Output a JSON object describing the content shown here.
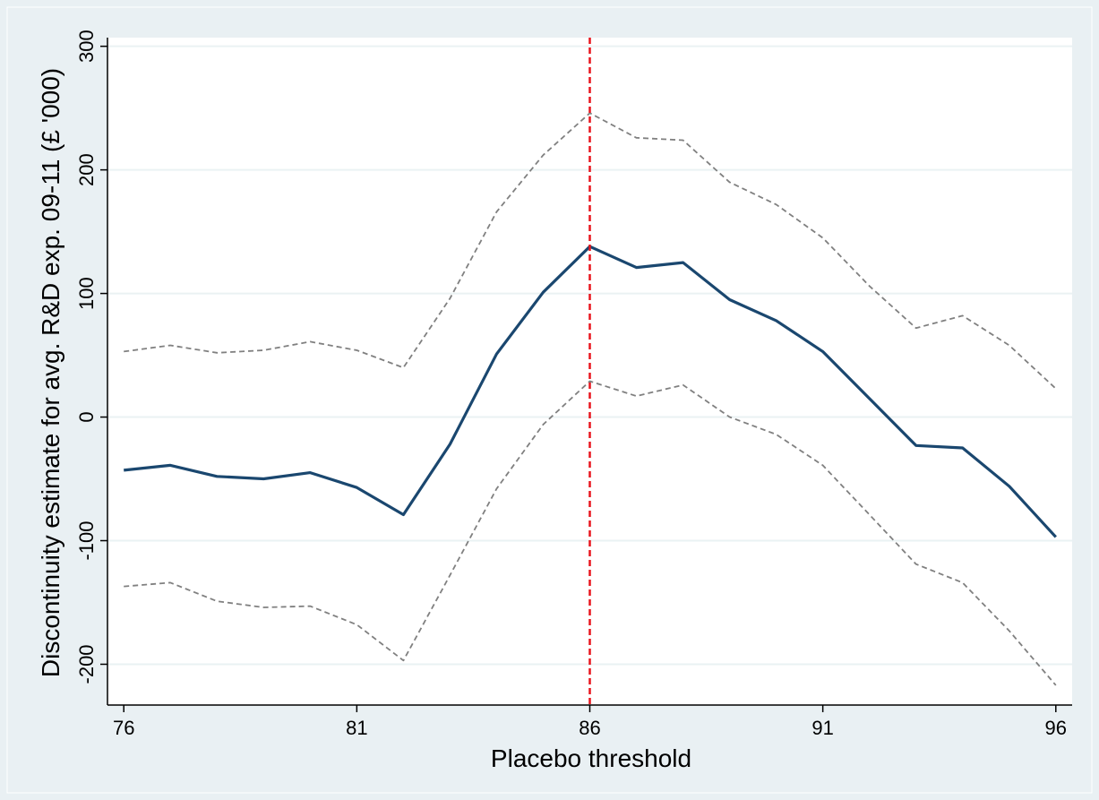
{
  "chart_data": {
    "type": "line",
    "title": "",
    "xlabel": "Placebo threshold",
    "ylabel": "Discontinuity estimate for avg. R&D exp. 09-11 (£ '000)",
    "xlim": [
      75.65,
      96.35
    ],
    "ylim": [
      -233,
      307
    ],
    "xticks": [
      76,
      81,
      86,
      91,
      96
    ],
    "yticks": [
      -200,
      -100,
      0,
      100,
      200,
      300
    ],
    "grid": true,
    "legend": "none",
    "x": [
      76,
      77,
      78,
      79,
      80,
      81,
      82,
      83,
      84,
      85,
      86,
      87,
      88,
      89,
      90,
      91,
      92,
      93,
      94,
      95,
      96
    ],
    "series": [
      {
        "role": "estimate",
        "color": "#1a476f",
        "style": "solid",
        "values": [
          -43,
          -39,
          -48,
          -50,
          -45,
          -57,
          -79,
          -22,
          51,
          101,
          138,
          121,
          125,
          95,
          78,
          53,
          15,
          -23,
          -25,
          -56,
          -97
        ]
      },
      {
        "role": "upper-ci",
        "color": "#808080",
        "style": "dashed",
        "values": [
          53,
          58,
          52,
          54,
          61,
          54,
          40,
          96,
          166,
          212,
          246,
          226,
          224,
          190,
          172,
          145,
          106,
          72,
          82,
          58,
          23
        ]
      },
      {
        "role": "lower-ci",
        "color": "#808080",
        "style": "dashed",
        "values": [
          -137,
          -134,
          -149,
          -154,
          -153,
          -168,
          -197,
          -128,
          -58,
          -6,
          29,
          17,
          26,
          0,
          -14,
          -39,
          -79,
          -119,
          -134,
          -173,
          -217
        ]
      }
    ],
    "reference_line": {
      "x": 86,
      "color": "#e8141c",
      "style": "dashed"
    }
  }
}
